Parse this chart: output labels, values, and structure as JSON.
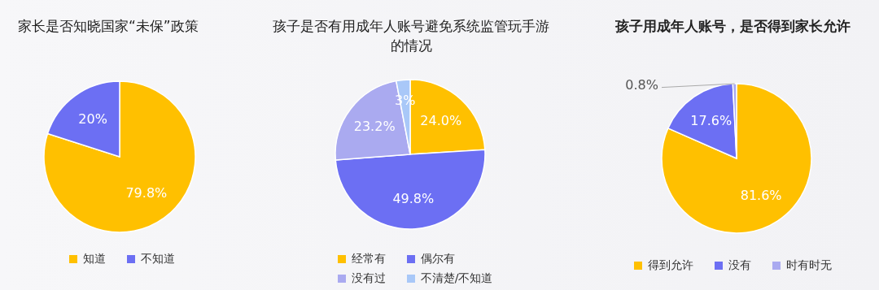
{
  "chart_data": [
    {
      "type": "pie",
      "title": "家长是否知晓国家“未保”政策",
      "categories": [
        "知道",
        "不知道"
      ],
      "values": [
        79.8,
        20
      ],
      "colors": [
        "#ffc000",
        "#6c6ff3"
      ],
      "value_labels": [
        "79.8%",
        "20%"
      ],
      "legend": "bottom"
    },
    {
      "type": "pie",
      "title": "孩子是否有用成年人账号避免系统监管玩手游的情况",
      "categories": [
        "经常有",
        "偶尔有",
        "没有过",
        "不清楚/不知道"
      ],
      "values": [
        24.0,
        49.8,
        23.2,
        3
      ],
      "colors": [
        "#ffc000",
        "#6c6ff3",
        "#aaaaf0",
        "#a9c8f8"
      ],
      "value_labels": [
        "24.0%",
        "49.8%",
        "23.2%",
        "3%"
      ],
      "legend": "bottom"
    },
    {
      "type": "pie",
      "title": "孩子用成年人账号，是否得到家长允许",
      "categories": [
        "得到允许",
        "没有",
        "时有时无"
      ],
      "values": [
        81.6,
        17.6,
        0.8
      ],
      "colors": [
        "#ffc000",
        "#6c6ff3",
        "#aaaaf0"
      ],
      "value_labels": [
        "81.6%",
        "17.6%",
        "0.8%"
      ],
      "legend": "bottom"
    }
  ]
}
